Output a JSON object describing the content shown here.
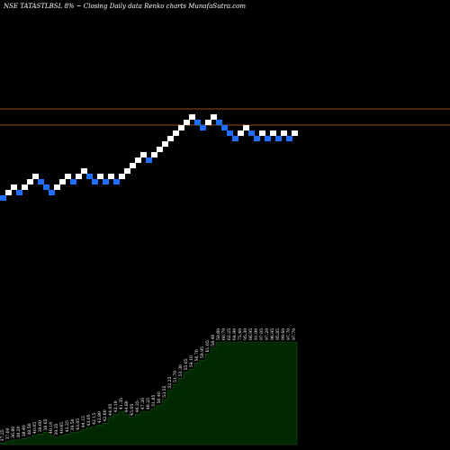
{
  "header": {
    "text": "NSE TATASTLBSL  8% ~  Closing Daily data  Renko  charts MunafaSutra.com"
  },
  "colors": {
    "background": "#000000",
    "up_brick": "#ffffff",
    "down_brick": "#1e6fff",
    "level_line": "#c06a2a",
    "volume_fill": "#002800",
    "volume_stroke": "#1c5a1c",
    "label": "#ffffff"
  },
  "chart_data": {
    "type": "renko",
    "grid": false,
    "bricks": [
      {
        "level": 0,
        "dir": "down"
      },
      {
        "level": 1,
        "dir": "up"
      },
      {
        "level": 2,
        "dir": "up"
      },
      {
        "level": 1,
        "dir": "down"
      },
      {
        "level": 2,
        "dir": "up"
      },
      {
        "level": 3,
        "dir": "up"
      },
      {
        "level": 4,
        "dir": "up"
      },
      {
        "level": 3,
        "dir": "down"
      },
      {
        "level": 2,
        "dir": "down"
      },
      {
        "level": 1,
        "dir": "down"
      },
      {
        "level": 2,
        "dir": "up"
      },
      {
        "level": 3,
        "dir": "up"
      },
      {
        "level": 4,
        "dir": "up"
      },
      {
        "level": 3,
        "dir": "down"
      },
      {
        "level": 4,
        "dir": "up"
      },
      {
        "level": 5,
        "dir": "up"
      },
      {
        "level": 4,
        "dir": "down"
      },
      {
        "level": 3,
        "dir": "down"
      },
      {
        "level": 4,
        "dir": "up"
      },
      {
        "level": 3,
        "dir": "down"
      },
      {
        "level": 4,
        "dir": "up"
      },
      {
        "level": 3,
        "dir": "down"
      },
      {
        "level": 4,
        "dir": "up"
      },
      {
        "level": 5,
        "dir": "up"
      },
      {
        "level": 6,
        "dir": "up"
      },
      {
        "level": 7,
        "dir": "up"
      },
      {
        "level": 8,
        "dir": "up"
      },
      {
        "level": 7,
        "dir": "down"
      },
      {
        "level": 8,
        "dir": "up"
      },
      {
        "level": 9,
        "dir": "up"
      },
      {
        "level": 10,
        "dir": "up"
      },
      {
        "level": 11,
        "dir": "up"
      },
      {
        "level": 12,
        "dir": "up"
      },
      {
        "level": 13,
        "dir": "up"
      },
      {
        "level": 14,
        "dir": "up"
      },
      {
        "level": 15,
        "dir": "up"
      },
      {
        "level": 14,
        "dir": "down"
      },
      {
        "level": 13,
        "dir": "down"
      },
      {
        "level": 14,
        "dir": "up"
      },
      {
        "level": 15,
        "dir": "up"
      },
      {
        "level": 14,
        "dir": "down"
      },
      {
        "level": 13,
        "dir": "down"
      },
      {
        "level": 12,
        "dir": "down"
      },
      {
        "level": 11,
        "dir": "down"
      },
      {
        "level": 12,
        "dir": "up"
      },
      {
        "level": 13,
        "dir": "up"
      },
      {
        "level": 12,
        "dir": "down"
      },
      {
        "level": 11,
        "dir": "down"
      },
      {
        "level": 12,
        "dir": "up"
      },
      {
        "level": 11,
        "dir": "down"
      },
      {
        "level": 12,
        "dir": "up"
      },
      {
        "level": 11,
        "dir": "down"
      },
      {
        "level": 12,
        "dir": "up"
      },
      {
        "level": 11,
        "dir": "down"
      },
      {
        "level": 12,
        "dir": "up"
      }
    ],
    "horizontal_levels": [
      16.5,
      13.5
    ],
    "volume": [
      0.5,
      1,
      1.5,
      1.6,
      2,
      2.5,
      3,
      3.5,
      4,
      3,
      2.5,
      3,
      3.5,
      4,
      4.2,
      5,
      5.5,
      6,
      6.5,
      7,
      9,
      10,
      11,
      10,
      9,
      10,
      11,
      11,
      12,
      13,
      15,
      18,
      20,
      22,
      24,
      25,
      27,
      28,
      30,
      32,
      34,
      34,
      34,
      34,
      34,
      34,
      34,
      34,
      34,
      34,
      34,
      34,
      34,
      34,
      34
    ],
    "volume_range": [
      0,
      34
    ],
    "volume_labels": [
      "37.25",
      "37.00",
      "36.80",
      "38.20",
      "38.40",
      "38.50",
      "40.05",
      "39.60",
      "38.65",
      "40.10",
      "39.35",
      "40.65",
      "42.25",
      "39.50",
      "43.05",
      "44.15",
      "43.05",
      "42.15",
      "43.80",
      "42.60",
      "44.05",
      "43.10",
      "41.35",
      "44.60",
      "45.05",
      "46.35",
      "47.20",
      "48.25",
      "51.85",
      "50.40",
      "53.55",
      "52.25",
      "51.70",
      "53.30",
      "55.05",
      "54.10",
      "56.70",
      "59.95",
      "61.05",
      "58.40",
      "59.80",
      "60.70",
      "62.25",
      "64.90",
      "72.40",
      "95.30",
      "66.95",
      "91.90",
      "97.05",
      "97.20",
      "96.95",
      "95.85",
      "99.40",
      "97.70",
      "97.70"
    ]
  }
}
